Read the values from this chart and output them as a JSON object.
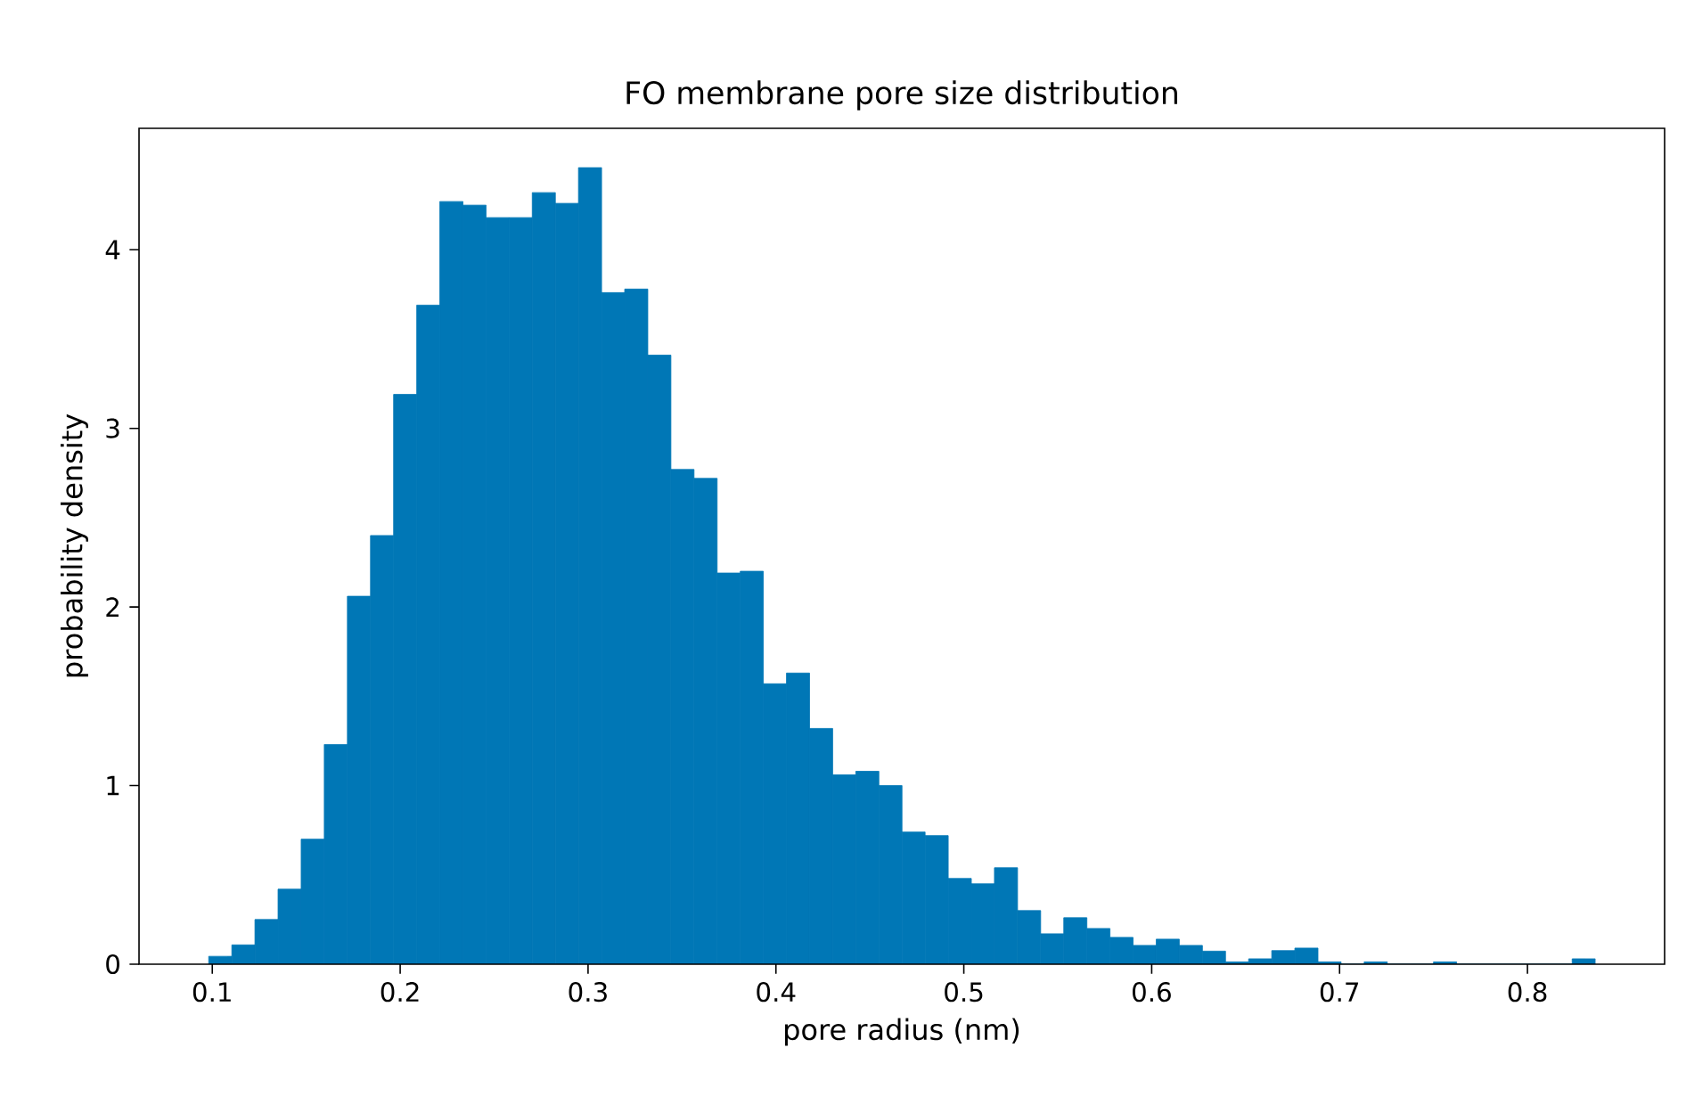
{
  "chart_data": {
    "type": "histogram",
    "title": "FO membrane pore size distribution",
    "xlabel": "pore radius (nm)",
    "ylabel": "probability density",
    "color": "#0077b6",
    "bins": [
      0.0981,
      0.1104,
      0.1227,
      0.135,
      0.1473,
      0.1596,
      0.1719,
      0.1842,
      0.1965,
      0.2088,
      0.2211,
      0.2334,
      0.2457,
      0.258,
      0.2703,
      0.2826,
      0.2949,
      0.3072,
      0.3195,
      0.3318,
      0.3441,
      0.3564,
      0.3687,
      0.381,
      0.3933,
      0.4056,
      0.4179,
      0.4302,
      0.4425,
      0.4548,
      0.4671,
      0.4794,
      0.4917,
      0.504,
      0.5163,
      0.5286,
      0.5409,
      0.5532,
      0.5655,
      0.5778,
      0.5901,
      0.6024,
      0.6147,
      0.627,
      0.6393,
      0.6516,
      0.6639,
      0.6762,
      0.6885,
      0.7008,
      0.7131,
      0.7254,
      0.7377,
      0.75,
      0.7623,
      0.7746,
      0.7869,
      0.7992,
      0.8115,
      0.8238,
      0.8361
    ],
    "values": [
      0.044,
      0.108,
      0.25,
      0.42,
      0.7,
      1.23,
      2.06,
      2.4,
      3.19,
      3.69,
      4.27,
      4.25,
      4.18,
      4.18,
      4.32,
      4.26,
      4.46,
      3.76,
      3.78,
      3.41,
      2.77,
      2.72,
      2.19,
      2.2,
      1.57,
      1.63,
      1.32,
      1.06,
      1.08,
      1.0,
      0.74,
      0.72,
      0.48,
      0.45,
      0.54,
      0.3,
      0.17,
      0.26,
      0.2,
      0.15,
      0.105,
      0.14,
      0.105,
      0.073,
      0.013,
      0.03,
      0.076,
      0.09,
      0.013,
      0,
      0.013,
      0,
      0,
      0.013,
      0,
      0,
      0,
      0,
      0,
      0.03
    ],
    "xlim": [
      0.061,
      0.873
    ],
    "ylim": [
      0,
      4.68
    ],
    "xticks": [
      0.1,
      0.2,
      0.3,
      0.4,
      0.5,
      0.6,
      0.7,
      0.8
    ],
    "yticks": [
      0,
      1,
      2,
      3,
      4
    ],
    "grid": false
  }
}
